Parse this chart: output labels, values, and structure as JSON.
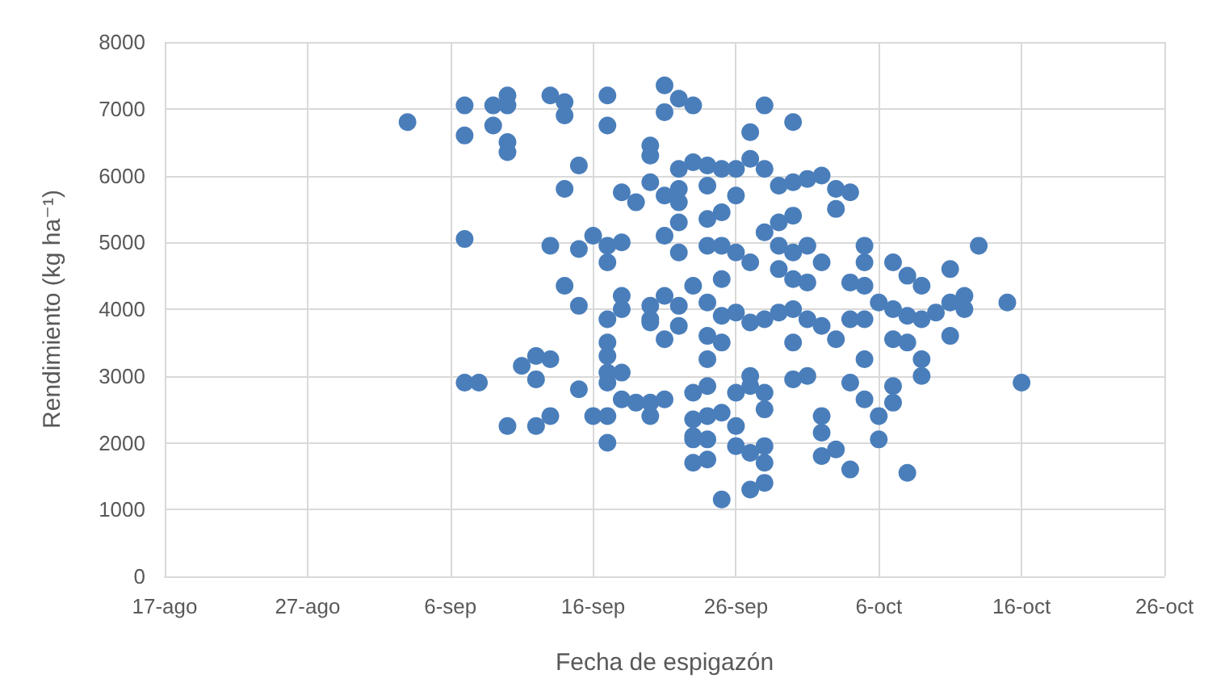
{
  "chart_data": {
    "type": "scatter",
    "xlabel": "Fecha de espigazón",
    "ylabel": "Rendimiento (kg ha⁻¹)",
    "xlim": [
      "--08-17",
      "--10-26"
    ],
    "ylim": [
      0,
      8000
    ],
    "xticks": [
      {
        "value": "--08-17",
        "label": "17-ago"
      },
      {
        "value": "--08-27",
        "label": "27-ago"
      },
      {
        "value": "--09-06",
        "label": "6-sep"
      },
      {
        "value": "--09-16",
        "label": "16-sep"
      },
      {
        "value": "--09-26",
        "label": "26-sep"
      },
      {
        "value": "--10-06",
        "label": "6-oct"
      },
      {
        "value": "--10-16",
        "label": "16-oct"
      },
      {
        "value": "--10-26",
        "label": "26-oct"
      }
    ],
    "yticks": [
      0,
      1000,
      2000,
      3000,
      4000,
      5000,
      6000,
      7000,
      8000
    ],
    "grid": true,
    "marker": "circle",
    "series": [
      {
        "color": "#4a7ebb",
        "x": [
          "--09-03",
          "--09-07",
          "--09-07",
          "--09-07",
          "--09-07",
          "--09-08",
          "--09-09",
          "--09-10",
          "--09-10",
          "--09-09",
          "--09-10",
          "--09-10",
          "--09-10",
          "--09-12",
          "--09-13",
          "--09-11",
          "--09-12",
          "--09-13",
          "--09-12",
          "--09-13",
          "--09-14",
          "--09-14",
          "--09-15",
          "--09-14",
          "--09-13",
          "--09-14",
          "--09-15",
          "--09-15",
          "--09-15",
          "--09-17",
          "--09-17",
          "--09-16",
          "--09-17",
          "--09-18",
          "--09-17",
          "--09-17",
          "--09-18",
          "--09-18",
          "--09-17",
          "--09-17",
          "--09-17",
          "--09-17",
          "--09-18",
          "--09-18",
          "--09-16",
          "--09-17",
          "--09-17",
          "--09-21",
          "--09-21",
          "--09-20",
          "--09-20",
          "--09-18",
          "--09-19",
          "--09-20",
          "--09-21",
          "--09-22",
          "--09-22",
          "--09-21",
          "--09-22",
          "--09-22",
          "--09-20",
          "--09-21",
          "--09-21",
          "--09-22",
          "--09-20",
          "--09-20",
          "--09-21",
          "--09-20",
          "--09-23",
          "--09-23",
          "--09-23",
          "--09-23",
          "--09-22",
          "--09-23",
          "--09-28",
          "--09-30",
          "--09-27",
          "--09-23",
          "--09-24",
          "--09-25",
          "--09-26",
          "--09-27",
          "--09-28",
          "--09-29",
          "--09-30",
          "--10-01",
          "--10-02",
          "--10-03",
          "--10-04",
          "--10-03",
          "--09-24",
          "--09-26",
          "--09-22",
          "--09-24",
          "--09-25",
          "--09-24",
          "--09-25",
          "--09-26",
          "--09-27",
          "--09-28",
          "--09-29",
          "--09-30",
          "--09-29",
          "--09-30",
          "--10-01",
          "--09-29",
          "--09-30",
          "--10-01",
          "--10-02",
          "--09-25",
          "--09-22",
          "--09-23",
          "--09-24",
          "--09-25",
          "--09-26",
          "--09-27",
          "--09-28",
          "--09-29",
          "--09-30",
          "--10-01",
          "--10-02",
          "--10-03",
          "--10-04",
          "--10-05",
          "--10-06",
          "--10-07",
          "--10-08",
          "--10-09",
          "--10-10",
          "--10-11",
          "--10-12",
          "--10-12",
          "--10-11",
          "--10-08",
          "--10-07",
          "--10-05",
          "--10-05",
          "--10-04",
          "--10-05",
          "--10-15",
          "--10-13",
          "--10-09",
          "--09-24",
          "--09-25",
          "--09-24",
          "--09-30",
          "--10-07",
          "--10-08",
          "--10-09",
          "--10-09",
          "--10-11",
          "--09-20",
          "--09-27",
          "--09-30",
          "--10-01",
          "--10-04",
          "--10-05",
          "--10-05",
          "--10-06",
          "--10-07",
          "--10-07",
          "--10-06",
          "--10-08",
          "--10-16",
          "--09-24",
          "--09-24",
          "--09-25",
          "--09-23",
          "--09-24",
          "--09-24",
          "--09-26",
          "--09-27",
          "--09-28",
          "--09-28",
          "--09-26",
          "--09-26",
          "--09-27",
          "--09-28",
          "--09-28",
          "--09-25",
          "--09-27",
          "--09-28",
          "--10-02",
          "--10-02",
          "--10-02",
          "--10-03",
          "--10-04",
          "--09-19"
        ],
        "values": [
          6800,
          7050,
          6600,
          5050,
          2900,
          2900,
          7050,
          7200,
          7050,
          6750,
          6500,
          6350,
          2250,
          2250,
          2400,
          3150,
          3300,
          3250,
          2950,
          7200,
          7100,
          6900,
          6150,
          5800,
          4950,
          4350,
          4050,
          4900,
          2800,
          7200,
          6750,
          5100,
          4950,
          5000,
          4700,
          3850,
          4200,
          4000,
          3500,
          3300,
          3050,
          2900,
          3050,
          2650,
          2400,
          2400,
          2000,
          7350,
          6950,
          6450,
          6300,
          5750,
          5600,
          5900,
          5700,
          6100,
          5800,
          5100,
          5300,
          4850,
          4050,
          4200,
          3550,
          3750,
          3800,
          2600,
          2650,
          2400,
          2750,
          2350,
          2050,
          1700,
          7150,
          7050,
          7050,
          6800,
          6650,
          6200,
          6150,
          6100,
          6100,
          6250,
          6100,
          5850,
          5900,
          5950,
          6000,
          5800,
          5750,
          5500,
          5850,
          5700,
          5600,
          5350,
          5450,
          4950,
          4950,
          4850,
          4700,
          5150,
          5300,
          5400,
          4950,
          4850,
          4950,
          4600,
          4450,
          4400,
          4700,
          4450,
          4050,
          4350,
          4100,
          3900,
          3950,
          3800,
          3850,
          3950,
          4000,
          3850,
          3750,
          3550,
          3850,
          3850,
          4100,
          4000,
          3900,
          3850,
          3950,
          4100,
          4200,
          4000,
          4600,
          4500,
          4700,
          4950,
          4700,
          4400,
          4350,
          4100,
          4950,
          4350,
          3600,
          3500,
          3250,
          3500,
          3550,
          3500,
          3250,
          3000,
          3600,
          3850,
          3000,
          2950,
          3000,
          2900,
          3250,
          2650,
          2400,
          2850,
          2600,
          2050,
          1550,
          2900,
          2850,
          2400,
          2450,
          2100,
          2050,
          1750,
          2750,
          2850,
          2750,
          2500,
          2250,
          1950,
          1850,
          1950,
          1700,
          1150,
          1300,
          1400,
          2400,
          2150,
          1800,
          1900,
          1600,
          2600
        ]
      }
    ]
  }
}
